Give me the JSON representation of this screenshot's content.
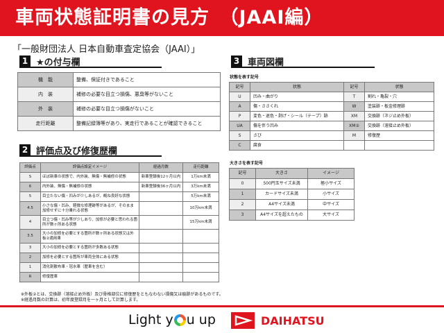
{
  "header": {
    "title": "車両状態証明書の見方　（JAAI編）"
  },
  "subtitle": "「一般財団法人 日本自動車査定協会（JAAI）」",
  "section1": {
    "num": "1",
    "title": "★の付与欄",
    "rows": [
      {
        "k": "機　能",
        "v": "整備、保証付きであること"
      },
      {
        "k": "内　装",
        "v": "補修の必要な目立つ損傷、悪臭等がないこと"
      },
      {
        "k": "外　装",
        "v": "補修の必要な目立つ損傷がないこと"
      },
      {
        "k": "走行距離",
        "v": "整備記録簿等があり、実走行であることが確認できること"
      }
    ]
  },
  "section2": {
    "num": "2",
    "title": "評価点及び修復歴欄",
    "headers": [
      "評価点",
      "評価点設定イメージ",
      "経過月数",
      "走行距離"
    ],
    "rows": [
      [
        "S",
        "ほぼ新車の状態で、内外装、無傷・無補修の状態",
        "新車登録後12ヶ月以内",
        "1万km未満"
      ],
      [
        "6",
        "内外装、無傷・無補修の状態",
        "新車登録後36ヶ月以内",
        "3万km未満"
      ],
      [
        "5",
        "目立たない傷・凹みが少しあるが、概ね良好な状態",
        "",
        "5万km未満"
      ],
      [
        "4.5",
        "小さな傷・凹み、軽微な修理跡等があるが、そのまま加修せずに十分乗れる状態",
        "",
        "10万km未満"
      ],
      [
        "4",
        "目立つ傷・凹み等が少しあり、加修が必要と思われる箇所が数ヶ所ある状態",
        "",
        "15万km未満"
      ],
      [
        "3.5",
        "大小の加修を必要とする箇所が数ヶ所ある状態又は外板②適用車",
        "",
        ""
      ],
      [
        "3",
        "大小の加修を必要とする箇所が多数ある状態",
        "",
        ""
      ],
      [
        "2",
        "加修を必要とする箇所が車両全体にある状態",
        "",
        ""
      ],
      [
        "1",
        "消化剤散布車・冠水車（歴車を含む）",
        "",
        ""
      ],
      [
        "R",
        "修復歴車",
        "",
        ""
      ]
    ]
  },
  "section3": {
    "num": "3",
    "title": "車両図欄",
    "state_label": "状態を表す記号",
    "state_headers": [
      "記号",
      "状態",
      "記号",
      "状態"
    ],
    "state_rows": [
      [
        "U",
        "凹み・曲がり",
        "T",
        "割れ・亀裂・穴"
      ],
      [
        "A",
        "傷・ささくれ",
        "W",
        "塗装跡・板金修理跡"
      ],
      [
        "P",
        "変色・退色・剥げ・シール（テープ）跡",
        "XM",
        "交換跡（ネジ止め外板）"
      ],
      [
        "UA",
        "傷を伴う凹み",
        "XM②",
        "交換跡（溶接止め外板）"
      ],
      [
        "S",
        "さび",
        "M",
        "修復歴"
      ],
      [
        "C",
        "腐食",
        "",
        ""
      ]
    ],
    "size_label": "大きさを表す記号",
    "size_headers": [
      "記号",
      "大きさ",
      "イメージ"
    ],
    "size_rows": [
      [
        "0",
        "500円玉サイズ未満",
        "極小サイズ"
      ],
      [
        "1",
        "カードサイズ未満",
        "小サイズ"
      ],
      [
        "2",
        "A4サイズ未満",
        "中サイズ"
      ],
      [
        "3",
        "A4サイズを超えたもの",
        "大サイズ"
      ]
    ]
  },
  "notes": [
    "※外板②とは、交換跡（溶接止め外板）及び骨格部位に修復歴をともなわない損傷又は痕跡があるものです。",
    "※経過月数の計算は、初年度登録月を一ヶ月として計算します。"
  ],
  "footer": {
    "slogan_a": "Light y",
    "slogan_b": "u up",
    "brand": "DAIHATSU"
  },
  "colors": {
    "brand_red": "#e0141e"
  }
}
